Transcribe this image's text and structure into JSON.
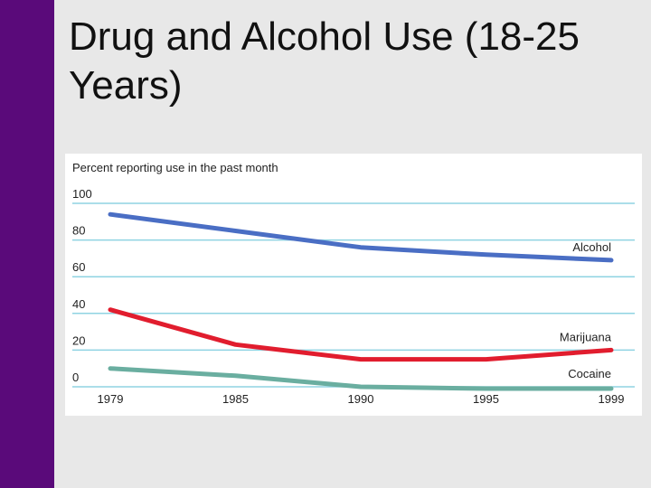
{
  "slide": {
    "title": "Drug and Alcohol Use (18-25 Years)",
    "accent_color": "#5a0a7a"
  },
  "chart_data": {
    "type": "line",
    "title": "Percent reporting use in the past month",
    "xlabel": "",
    "ylabel": "",
    "x": [
      "1979",
      "1985",
      "1990",
      "1995",
      "1999"
    ],
    "y_ticks": [
      "0",
      "20",
      "40",
      "60",
      "80",
      "100"
    ],
    "ylim": [
      0,
      100
    ],
    "grid": true,
    "gridline_color": "#8fd3e2",
    "series": [
      {
        "name": "Alcohol",
        "color": "#4a6ec4",
        "values": [
          94,
          85,
          76,
          72,
          69
        ]
      },
      {
        "name": "Marijuana",
        "color": "#e11d2e",
        "values": [
          42,
          23,
          15,
          15,
          20
        ]
      },
      {
        "name": "Cocaine",
        "color": "#6aaea0",
        "values": [
          10,
          6,
          0,
          -1,
          -1
        ]
      }
    ]
  }
}
